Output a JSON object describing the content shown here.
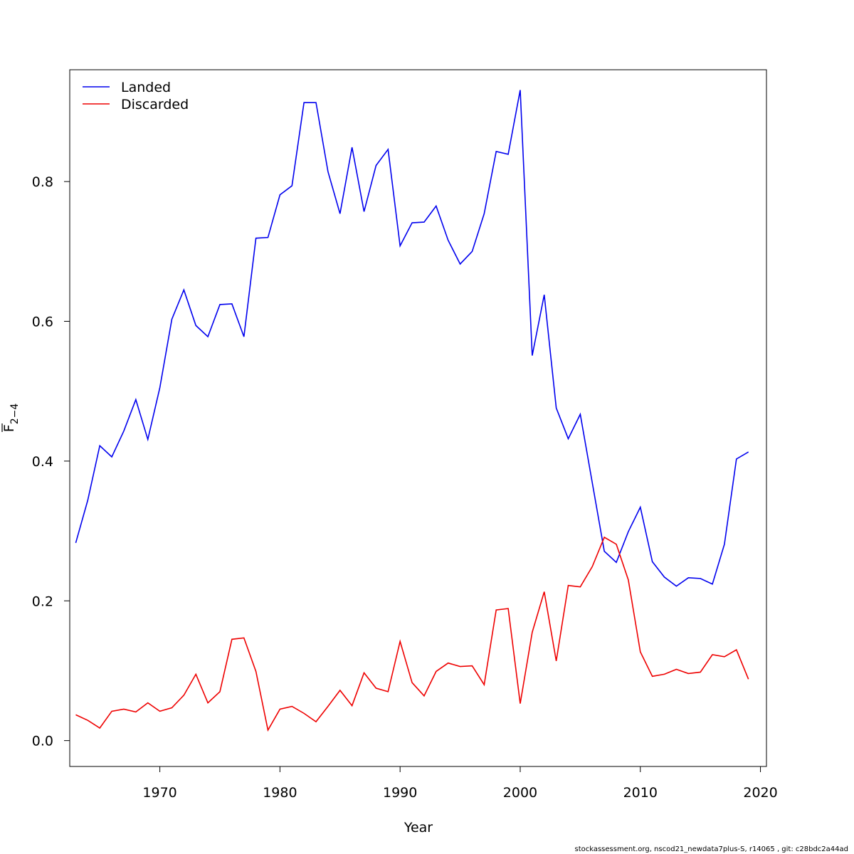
{
  "chart_data": {
    "type": "line",
    "xlabel": "Year",
    "ylabel": {
      "main": "F",
      "sub": "2−4"
    },
    "xlim": [
      1962.5,
      2020.5
    ],
    "ylim": [
      -0.037,
      0.96
    ],
    "xticks": [
      1970,
      1980,
      1990,
      2000,
      2010,
      2020
    ],
    "yticks": [
      0.0,
      0.2,
      0.4,
      0.6,
      0.8
    ],
    "xtick_labels": [
      "1970",
      "1980",
      "1990",
      "2000",
      "2010",
      "2020"
    ],
    "ytick_labels": [
      "0.0",
      "0.2",
      "0.4",
      "0.6",
      "0.8"
    ],
    "grid": false,
    "legend_position": "top-left",
    "x": [
      1963,
      1964,
      1965,
      1966,
      1967,
      1968,
      1969,
      1970,
      1971,
      1972,
      1973,
      1974,
      1975,
      1976,
      1977,
      1978,
      1979,
      1980,
      1981,
      1982,
      1983,
      1984,
      1985,
      1986,
      1987,
      1988,
      1989,
      1990,
      1991,
      1992,
      1993,
      1994,
      1995,
      1996,
      1997,
      1998,
      1999,
      2000,
      2001,
      2002,
      2003,
      2004,
      2005,
      2006,
      2007,
      2008,
      2009,
      2010,
      2011,
      2012,
      2013,
      2014,
      2015,
      2016,
      2017,
      2018,
      2019
    ],
    "series": [
      {
        "name": "Landed",
        "color": "#0000ee",
        "values": [
          0.283,
          0.344,
          0.422,
          0.406,
          0.443,
          0.488,
          0.431,
          0.505,
          0.603,
          0.645,
          0.594,
          0.578,
          0.624,
          0.625,
          0.578,
          0.719,
          0.72,
          0.781,
          0.794,
          0.913,
          0.913,
          0.814,
          0.754,
          0.849,
          0.757,
          0.823,
          0.846,
          0.708,
          0.741,
          0.742,
          0.765,
          0.716,
          0.682,
          0.7,
          0.754,
          0.843,
          0.839,
          0.931,
          0.551,
          0.638,
          0.476,
          0.432,
          0.467,
          0.369,
          0.271,
          0.255,
          0.299,
          0.334,
          0.256,
          0.234,
          0.221,
          0.233,
          0.232,
          0.224,
          0.281,
          0.403,
          0.413
        ]
      },
      {
        "name": "Discarded",
        "color": "#ee0000",
        "values": [
          0.037,
          0.029,
          0.018,
          0.042,
          0.045,
          0.041,
          0.054,
          0.042,
          0.047,
          0.065,
          0.095,
          0.054,
          0.07,
          0.145,
          0.147,
          0.099,
          0.015,
          0.045,
          0.049,
          0.039,
          0.027,
          0.049,
          0.072,
          0.05,
          0.097,
          0.075,
          0.07,
          0.142,
          0.083,
          0.064,
          0.099,
          0.111,
          0.106,
          0.107,
          0.08,
          0.187,
          0.189,
          0.053,
          0.155,
          0.213,
          0.114,
          0.222,
          0.22,
          0.249,
          0.291,
          0.281,
          0.23,
          0.127,
          0.092,
          0.095,
          0.102,
          0.096,
          0.098,
          0.123,
          0.12,
          0.13,
          0.088
        ]
      }
    ]
  },
  "footer": "stockassessment.org, nscod21_newdata7plus-S, r14065 , git: c28bdc2a44ad"
}
